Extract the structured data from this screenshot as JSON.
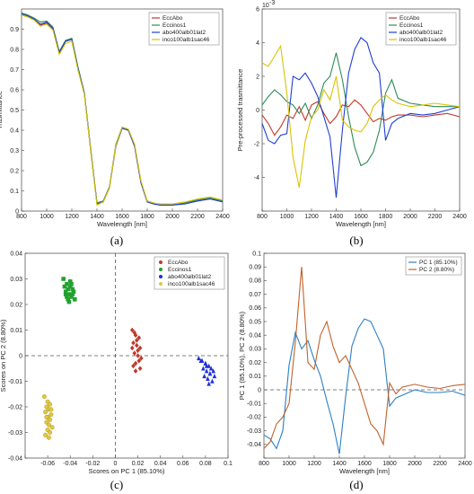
{
  "panel_labels": [
    "(a)",
    "(b)",
    "(c)",
    "(d)"
  ],
  "chart_data": [
    {
      "id": "a",
      "type": "line",
      "xlabel": "Wavelength [nm]",
      "ylabel": "Trasmittance",
      "xlim": [
        800,
        2400
      ],
      "ylim": [
        0,
        1
      ],
      "xticks": [
        800,
        1000,
        1200,
        1400,
        1600,
        1800,
        2000,
        2200,
        2400
      ],
      "yticks": [
        0,
        0.1,
        0.2,
        0.3,
        0.4,
        0.5,
        0.6,
        0.7,
        0.8,
        0.9
      ],
      "ytick_labels": [
        "0",
        "0.1",
        "0.2",
        "0.3",
        "0.4",
        "0.5",
        "0.6",
        "0.7",
        "0.8",
        "0.9"
      ],
      "legend_position": "top-right",
      "x": [
        800,
        850,
        900,
        950,
        1000,
        1050,
        1100,
        1150,
        1200,
        1250,
        1300,
        1350,
        1400,
        1450,
        1500,
        1550,
        1600,
        1650,
        1700,
        1750,
        1800,
        1850,
        1900,
        2000,
        2100,
        2200,
        2300,
        2400
      ],
      "series": [
        {
          "name": "EccAbo",
          "color": "#c0392b",
          "values": [
            0.98,
            0.97,
            0.95,
            0.92,
            0.93,
            0.9,
            0.78,
            0.84,
            0.85,
            0.7,
            0.58,
            0.3,
            0.04,
            0.05,
            0.12,
            0.32,
            0.41,
            0.4,
            0.32,
            0.14,
            0.05,
            0.04,
            0.03,
            0.03,
            0.04,
            0.05,
            0.06,
            0.05
          ]
        },
        {
          "name": "Eccinos1",
          "color": "#2e8b57",
          "values": [
            0.98,
            0.97,
            0.955,
            0.935,
            0.94,
            0.91,
            0.79,
            0.845,
            0.855,
            0.71,
            0.585,
            0.31,
            0.04,
            0.05,
            0.12,
            0.33,
            0.415,
            0.405,
            0.325,
            0.145,
            0.05,
            0.04,
            0.03,
            0.03,
            0.04,
            0.055,
            0.065,
            0.05
          ]
        },
        {
          "name": "abo400alb01lat2",
          "color": "#1f3fd6",
          "values": [
            0.975,
            0.965,
            0.95,
            0.925,
            0.935,
            0.905,
            0.785,
            0.84,
            0.85,
            0.705,
            0.58,
            0.305,
            0.035,
            0.045,
            0.115,
            0.32,
            0.41,
            0.4,
            0.32,
            0.14,
            0.045,
            0.035,
            0.03,
            0.03,
            0.035,
            0.05,
            0.06,
            0.045
          ]
        },
        {
          "name": "inco100alb1sac46",
          "color": "#d9c400",
          "values": [
            0.97,
            0.96,
            0.945,
            0.915,
            0.925,
            0.895,
            0.775,
            0.83,
            0.84,
            0.695,
            0.575,
            0.3,
            0.03,
            0.045,
            0.115,
            0.325,
            0.415,
            0.405,
            0.33,
            0.15,
            0.05,
            0.04,
            0.035,
            0.035,
            0.045,
            0.06,
            0.07,
            0.055
          ]
        }
      ]
    },
    {
      "id": "b",
      "type": "line",
      "xlabel": "Wavelength [nm]",
      "ylabel": "Pre-processed trasmittance",
      "exponent_label": "10",
      "exponent_power": "-3",
      "xlim": [
        800,
        2400
      ],
      "ylim": [
        -6,
        6
      ],
      "xticks": [
        800,
        1000,
        1200,
        1400,
        1600,
        1800,
        2000,
        2200,
        2400
      ],
      "yticks": [
        -6,
        -4,
        -2,
        0,
        2,
        4,
        6
      ],
      "ytick_labels": [
        "",
        "-4",
        "-2",
        "0",
        "2",
        "4",
        "6"
      ],
      "legend_position": "top-right",
      "x": [
        800,
        850,
        900,
        950,
        1000,
        1050,
        1100,
        1150,
        1200,
        1250,
        1300,
        1350,
        1400,
        1450,
        1500,
        1550,
        1600,
        1650,
        1700,
        1750,
        1800,
        1850,
        1900,
        2000,
        2100,
        2200,
        2300,
        2400
      ],
      "series": [
        {
          "name": "EccAbo",
          "color": "#c0392b",
          "values": [
            -0.3,
            -0.8,
            -1.5,
            -1.0,
            -0.3,
            -0.5,
            0.2,
            -0.6,
            0.3,
            0.5,
            -0.2,
            -0.8,
            -0.4,
            0.3,
            0.2,
            0.6,
            0.3,
            -0.2,
            -0.7,
            -0.5,
            -0.6,
            -0.4,
            -0.3,
            -0.3,
            -0.4,
            -0.3,
            -0.2,
            -0.4
          ]
        },
        {
          "name": "Eccinos1",
          "color": "#2e8b57",
          "values": [
            0.3,
            0.8,
            1.2,
            0.9,
            0.5,
            0.3,
            -0.2,
            0.4,
            -0.5,
            0.3,
            1.6,
            2.0,
            3.4,
            1.8,
            -0.4,
            -2.2,
            -3.3,
            -3.1,
            -2.5,
            -1.2,
            1.0,
            1.8,
            0.7,
            0.4,
            0.3,
            0.2,
            0.2,
            0.2
          ]
        },
        {
          "name": "abo400alb01lat2",
          "color": "#1f3fd6",
          "values": [
            -0.8,
            -1.8,
            -2.0,
            -1.5,
            -1.4,
            2.0,
            1.8,
            2.2,
            1.6,
            0.8,
            -0.4,
            -1.6,
            -5.2,
            -1.2,
            2.2,
            3.6,
            4.3,
            4.0,
            2.8,
            2.2,
            -1.8,
            -0.8,
            -0.5,
            -0.2,
            -0.3,
            -0.2,
            0.0,
            0.2
          ]
        },
        {
          "name": "inco100alb1sac46",
          "color": "#d9c400",
          "values": [
            2.8,
            2.6,
            3.2,
            3.8,
            1.0,
            -2.8,
            -4.6,
            -1.8,
            -0.4,
            0.0,
            1.2,
            0.6,
            2.0,
            -0.6,
            -1.0,
            -1.2,
            -1.3,
            -0.8,
            0.2,
            0.6,
            0.9,
            0.6,
            0.4,
            0.2,
            0.3,
            0.4,
            0.3,
            0.2
          ]
        }
      ]
    },
    {
      "id": "c",
      "type": "scatter",
      "xlabel": "Scores on PC 1 (85.10%)",
      "ylabel": "Scores on PC 2 (8.80%)",
      "xlim": [
        -0.08,
        0.1
      ],
      "ylim": [
        -0.04,
        0.04
      ],
      "xticks": [
        -0.08,
        -0.06,
        -0.04,
        -0.02,
        0,
        0.02,
        0.04,
        0.06,
        0.08,
        0.1
      ],
      "xtick_labels": [
        "",
        "-0.06",
        "-0.04",
        "-0.02",
        "0",
        "0.02",
        "0.04",
        "0.06",
        "0.08",
        "0.1"
      ],
      "yticks": [
        -0.04,
        -0.03,
        -0.02,
        -0.01,
        0,
        0.01,
        0.02,
        0.03,
        0.04
      ],
      "ytick_labels": [
        "-0.04",
        "-0.03",
        "-0.02",
        "-0.01",
        "0",
        "0.01",
        "0.02",
        "0.03",
        "0.04"
      ],
      "legend_position": "top-right",
      "series": [
        {
          "name": "EccAbo",
          "color": "#c0392b",
          "marker": "diamond",
          "x": [
            0.015,
            0.018,
            0.021,
            0.016,
            0.019,
            0.022,
            0.017,
            0.02,
            0.023,
            0.018,
            0.016,
            0.021,
            0.019,
            0.017,
            0.02,
            0.022,
            0.018,
            0.015
          ],
          "y": [
            0.01,
            0.008,
            0.007,
            0.005,
            0.004,
            0.003,
            0.001,
            0.0,
            -0.001,
            -0.003,
            -0.004,
            -0.002,
            0.006,
            0.009,
            0.002,
            -0.005,
            -0.006,
            0.003
          ]
        },
        {
          "name": "Eccinos1",
          "color": "#22a12e",
          "marker": "square",
          "x": [
            -0.046,
            -0.043,
            -0.04,
            -0.038,
            -0.044,
            -0.041,
            -0.039,
            -0.036,
            -0.042,
            -0.045,
            -0.04,
            -0.037,
            -0.043,
            -0.039,
            -0.041,
            -0.044,
            -0.038,
            -0.042
          ],
          "y": [
            0.03,
            0.028,
            0.027,
            0.026,
            0.025,
            0.024,
            0.023,
            0.022,
            0.026,
            0.027,
            0.029,
            0.025,
            0.023,
            0.028,
            0.021,
            0.024,
            0.024,
            0.022
          ]
        },
        {
          "name": "abo400alb01lat2",
          "color": "#1f2fd6",
          "marker": "triangle",
          "x": [
            0.074,
            0.077,
            0.08,
            0.083,
            0.085,
            0.078,
            0.081,
            0.084,
            0.087,
            0.079,
            0.082,
            0.086,
            0.08,
            0.083,
            0.076,
            0.088,
            0.081,
            0.084
          ],
          "y": [
            -0.001,
            -0.002,
            -0.003,
            -0.004,
            -0.005,
            -0.005,
            -0.006,
            -0.007,
            -0.006,
            -0.008,
            -0.009,
            -0.01,
            -0.003,
            -0.011,
            -0.002,
            -0.008,
            -0.004,
            -0.007
          ]
        },
        {
          "name": "inco100alb1sac46",
          "color": "#e0c840",
          "marker": "circle",
          "x": [
            -0.063,
            -0.06,
            -0.058,
            -0.061,
            -0.059,
            -0.062,
            -0.057,
            -0.06,
            -0.058,
            -0.061,
            -0.059,
            -0.056,
            -0.06,
            -0.058,
            -0.062,
            -0.059,
            -0.061,
            -0.057
          ],
          "y": [
            -0.016,
            -0.018,
            -0.019,
            -0.02,
            -0.021,
            -0.022,
            -0.023,
            -0.024,
            -0.025,
            -0.026,
            -0.027,
            -0.028,
            -0.029,
            -0.03,
            -0.031,
            -0.032,
            -0.024,
            -0.021
          ]
        }
      ]
    },
    {
      "id": "d",
      "type": "line",
      "xlabel": "Wavelength [nm]",
      "ylabel": "PC 1 (85.10%), PC 2 (8.80%)",
      "xlim": [
        800,
        2400
      ],
      "ylim": [
        -0.05,
        0.1
      ],
      "xticks": [
        800,
        1000,
        1200,
        1400,
        1600,
        1800,
        2000,
        2200,
        2400
      ],
      "yticks": [
        -0.05,
        -0.04,
        -0.03,
        -0.02,
        -0.01,
        0,
        0.01,
        0.02,
        0.03,
        0.04,
        0.05,
        0.06,
        0.07,
        0.08,
        0.09,
        0.1
      ],
      "ytick_labels": [
        "",
        "-0.04",
        "-0.03",
        "-0.02",
        "-0.01",
        "0",
        "0.01",
        "0.02",
        "0.03",
        "0.04",
        "0.05",
        "0.06",
        "0.07",
        "0.08",
        "0.09",
        "0.1"
      ],
      "legend_position": "top-right",
      "x": [
        800,
        850,
        900,
        950,
        1000,
        1050,
        1100,
        1150,
        1200,
        1250,
        1300,
        1350,
        1400,
        1450,
        1500,
        1550,
        1600,
        1650,
        1700,
        1750,
        1800,
        1850,
        1900,
        2000,
        2100,
        2200,
        2300,
        2400
      ],
      "series": [
        {
          "name": "PC 1 (85.10%)",
          "color": "#2a7fc8",
          "values": [
            -0.033,
            -0.036,
            -0.043,
            -0.03,
            0.018,
            0.042,
            0.03,
            0.036,
            0.022,
            0.01,
            -0.008,
            -0.025,
            -0.047,
            -0.005,
            0.032,
            0.045,
            0.052,
            0.05,
            0.04,
            0.03,
            -0.012,
            -0.006,
            -0.004,
            0.0,
            -0.002,
            -0.002,
            -0.001,
            -0.004
          ]
        },
        {
          "name": "PC 2 (8.80%)",
          "color": "#c0622b",
          "values": [
            -0.043,
            -0.038,
            -0.025,
            -0.02,
            -0.01,
            0.035,
            0.09,
            0.02,
            0.015,
            0.04,
            0.05,
            0.032,
            0.02,
            0.025,
            0.015,
            0.005,
            -0.01,
            -0.025,
            -0.03,
            -0.04,
            0.005,
            -0.003,
            0.002,
            0.004,
            0.002,
            0.001,
            0.003,
            0.004
          ]
        }
      ]
    }
  ]
}
